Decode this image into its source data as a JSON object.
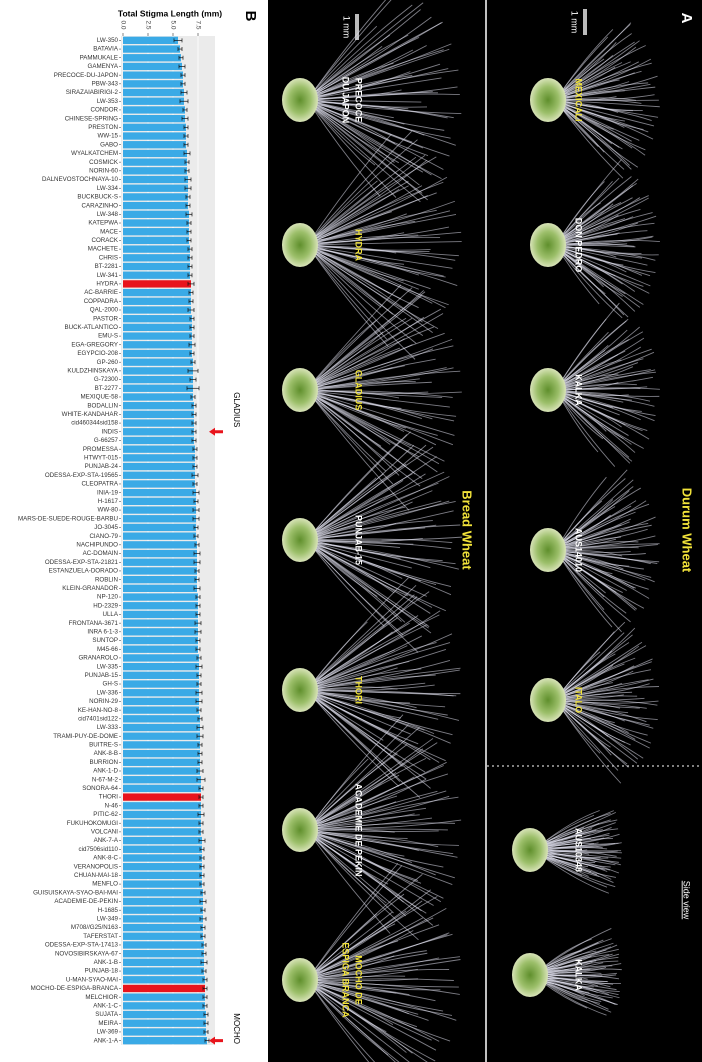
{
  "chart_data": {
    "type": "barh",
    "panel_label": "B",
    "title": "Total Stigma Length (mm)",
    "categories": [
      "LW-350",
      "BATAVIA",
      "PAMMUKALE",
      "GAMENYA",
      "PRECOCE-DU-JAPON",
      "PBW-343",
      "SIRAZAIABIRIGI-2",
      "LW-353",
      "CONDOR",
      "CHINESE-SPRING",
      "PRESTON",
      "WW-15",
      "GABO",
      "WYALKATCHEM",
      "COSMICK",
      "NORIN-60",
      "DALNEVOSTOCHNAYA-10",
      "LW-334",
      "BUCKBUCK-S",
      "CARAZINHO",
      "LW-348",
      "KATEPWA",
      "MACE",
      "CORACK",
      "MACHETE",
      "CHRIS",
      "BT-2281",
      "LW-341",
      "HYDRA",
      "AC-BARRIE",
      "COPPADRA",
      "QAL-2000",
      "PASTOR",
      "BUCK-ATLANTICO",
      "EMU-S",
      "EGA-GREGORY",
      "EGYPCIO-208",
      "GP-260",
      "KULDZHINSKAYA",
      "G-72300",
      "BT-2277",
      "MEXIQUE-58",
      "BODALLIN",
      "WHITE-KANDAHAR",
      "cid460344sid158",
      "INDIS",
      "G-66257",
      "PROMESSA",
      "HTWYT-015",
      "PUNJAB-24",
      "ODESSA-EXP-STA-19565",
      "CLEOPATRA",
      "INIA-19",
      "H-1617",
      "WW-80",
      "MARS-DE-SUEDE-ROUGE-BARBU",
      "JO-3045",
      "CIANO-79",
      "NACHIPUNDO",
      "AC-DOMAIN",
      "ODESSA-EXP-STA-21821",
      "ESTANZUELA-DORADO",
      "ROBLIN",
      "KLEIN-GRANADOR",
      "NP-120",
      "HD-2329",
      "ULLA",
      "FRONTANA-3671",
      "INRA 6-1-3",
      "SUNTOP",
      "M45-66",
      "GRANAROLO",
      "LW-335",
      "PUNJAB-15",
      "GH-S",
      "LW-336",
      "NORIN-29",
      "KE-HAN-NO-8",
      "cid7401sid122",
      "LW-333",
      "TRAMI-PUY-DE-DOME",
      "BUITRE-S",
      "ANK-8-B",
      "BURRION",
      "ANK-1-D",
      "N-67-M-2",
      "SONORA-64",
      "THORI",
      "N-46",
      "PITIC-62",
      "FUKUHOKOMUGI",
      "VOLCANI",
      "ANK-7-A",
      "cid7506sid110",
      "ANK-8-C",
      "VERANOPOLIS",
      "CHUAN-MAI-18",
      "MENFLO",
      "GUISUISKAYA-SYAO-BAI-MAI",
      "ACADEMIE-DE-PEKIN",
      "H-1685",
      "LW-349",
      "M708//G25/N163",
      "TAFERSTAT",
      "ODESSA-EXP-STA-17413",
      "NOVOSIBIRSKAYA-67",
      "ANK-1-B",
      "PUNJAB-18",
      "U-MAN-SYAO-MAI",
      "MOCHO-DE-ESPIGA-BRANCA",
      "MELCHIOR",
      "ANK-1-C",
      "SUJATA",
      "MEIRA",
      "LW-369",
      "ANK-1-A"
    ],
    "values": [
      5.5,
      5.7,
      5.8,
      5.9,
      6.0,
      6.0,
      6.1,
      6.1,
      6.2,
      6.2,
      6.3,
      6.3,
      6.3,
      6.4,
      6.4,
      6.4,
      6.5,
      6.5,
      6.5,
      6.5,
      6.6,
      6.6,
      6.6,
      6.6,
      6.7,
      6.7,
      6.7,
      6.7,
      6.8,
      6.8,
      6.8,
      6.8,
      6.9,
      6.9,
      6.9,
      6.9,
      6.9,
      7.0,
      7.0,
      7.0,
      7.0,
      7.0,
      7.1,
      7.1,
      7.1,
      7.1,
      7.1,
      7.2,
      7.2,
      7.2,
      7.2,
      7.2,
      7.3,
      7.3,
      7.3,
      7.3,
      7.3,
      7.3,
      7.4,
      7.4,
      7.4,
      7.4,
      7.4,
      7.4,
      7.5,
      7.5,
      7.5,
      7.5,
      7.5,
      7.5,
      7.5,
      7.6,
      7.6,
      7.6,
      7.6,
      7.6,
      7.6,
      7.6,
      7.7,
      7.7,
      7.7,
      7.7,
      7.7,
      7.7,
      7.7,
      7.8,
      7.8,
      7.8,
      7.8,
      7.8,
      7.8,
      7.8,
      7.9,
      7.9,
      7.9,
      7.9,
      7.9,
      7.9,
      8.0,
      8.0,
      8.0,
      8.0,
      8.0,
      8.0,
      8.1,
      8.1,
      8.1,
      8.1,
      8.2,
      8.2,
      8.2,
      8.2,
      8.3,
      8.3,
      8.3,
      8.4
    ],
    "errors": [
      0.4,
      0.2,
      0.2,
      0.3,
      0.2,
      0.2,
      0.3,
      0.4,
      0.2,
      0.3,
      0.2,
      0.2,
      0.2,
      0.3,
      0.2,
      0.2,
      0.3,
      0.3,
      0.2,
      0.2,
      0.3,
      0.2,
      0.2,
      0.2,
      0.2,
      0.2,
      0.2,
      0.2,
      0.3,
      0.2,
      0.2,
      0.3,
      0.2,
      0.2,
      0.2,
      0.3,
      0.2,
      0.2,
      0.5,
      0.3,
      0.6,
      0.2,
      0.2,
      0.2,
      0.2,
      0.2,
      0.2,
      0.2,
      0.2,
      0.2,
      0.3,
      0.2,
      0.3,
      0.2,
      0.3,
      0.3,
      0.2,
      0.2,
      0.2,
      0.3,
      0.3,
      0.2,
      0.2,
      0.3,
      0.2,
      0.2,
      0.2,
      0.3,
      0.3,
      0.2,
      0.2,
      0.2,
      0.3,
      0.2,
      0.2,
      0.3,
      0.3,
      0.2,
      0.2,
      0.3,
      0.3,
      0.2,
      0.2,
      0.2,
      0.3,
      0.4,
      0.2,
      0.2,
      0.2,
      0.3,
      0.2,
      0.2,
      0.3,
      0.2,
      0.2,
      0.2,
      0.2,
      0.2,
      0.2,
      0.3,
      0.2,
      0.3,
      0.2,
      0.2,
      0.2,
      0.2,
      0.3,
      0.2,
      0.2,
      0.2,
      0.2,
      0.2,
      0.2,
      0.2,
      0.2,
      0.2
    ],
    "color": "#3aaae6",
    "highlight": {
      "color": "#e8141c",
      "categories": [
        "HYDRA",
        "THORI",
        "MOCHO-DE-ESPIGA-BRANCA"
      ]
    },
    "xlim": [
      0,
      9.2
    ],
    "xticks": [
      {
        "value": 0,
        "label": "0.0"
      },
      2.5,
      {
        "value": 5,
        "label": "5.0"
      },
      7.5
    ],
    "grid": true,
    "annotations": [
      {
        "text": "GLADIUS",
        "at": "INDIS"
      },
      {
        "text": "MOCHO",
        "at": "ANK-1-A"
      }
    ]
  },
  "panel_a": {
    "label": "A",
    "highlight_color": "#f2e33a",
    "scale": "1 mm",
    "durum": {
      "title": "Durum Wheat",
      "items": [
        {
          "lines": [
            "MEXICALI"
          ],
          "highlight": true
        },
        {
          "lines": [
            "DON PEDRO"
          ],
          "highlight": false
        },
        {
          "lines": [
            "KALKA"
          ],
          "highlight": false
        },
        {
          "lines": [
            "AUS14010"
          ],
          "highlight": false
        },
        {
          "lines": [
            "ITALO"
          ],
          "highlight": true
        }
      ],
      "side_view": "Side view",
      "side_items": [
        {
          "lines": [
            "AUS10348"
          ],
          "highlight": false
        },
        {
          "lines": [
            "KALKA"
          ],
          "highlight": false
        }
      ]
    },
    "bread": {
      "title": "Bread Wheat",
      "items": [
        {
          "lines": [
            "PRECOCE",
            "DU JAPON"
          ],
          "highlight": false
        },
        {
          "lines": [
            "HYDRA"
          ],
          "highlight": true
        },
        {
          "lines": [
            "GLADIUS"
          ],
          "highlight": true
        },
        {
          "lines": [
            "PUNJAB-15"
          ],
          "highlight": false
        },
        {
          "lines": [
            "THORI"
          ],
          "highlight": true
        },
        {
          "lines": [
            "ACADEMIE DE PEKIN"
          ],
          "highlight": false
        },
        {
          "lines": [
            "MOCHO DE",
            "ESPIGA BRANCA"
          ],
          "highlight": true
        }
      ]
    }
  }
}
